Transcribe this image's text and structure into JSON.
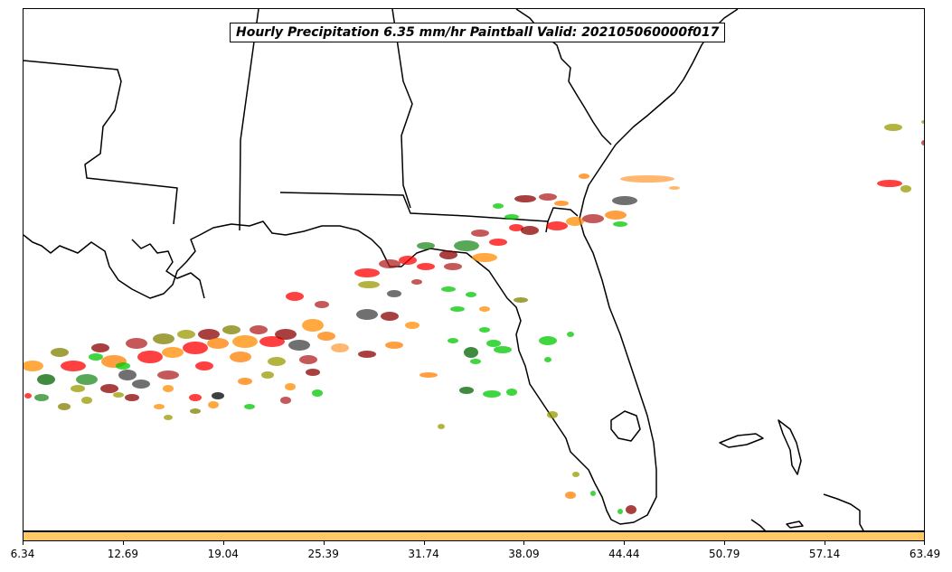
{
  "title": "Hourly Precipitation 6.35 mm/hr Paintball Valid: 202105060000f017",
  "colorbar": {
    "color": "#ffc966",
    "ticks": [
      "6.34",
      "12.69",
      "19.04",
      "25.39",
      "31.74",
      "38.09",
      "44.44",
      "50.79",
      "57.14",
      "63.49"
    ]
  },
  "member_colors": [
    "#ff0000",
    "#b22222",
    "#8b0000",
    "#006400",
    "#228b22",
    "#00c800",
    "#ff7f00",
    "#ff8c00",
    "#808000",
    "#9a9a00",
    "#000000",
    "#404040",
    "#ff9f40"
  ]
}
